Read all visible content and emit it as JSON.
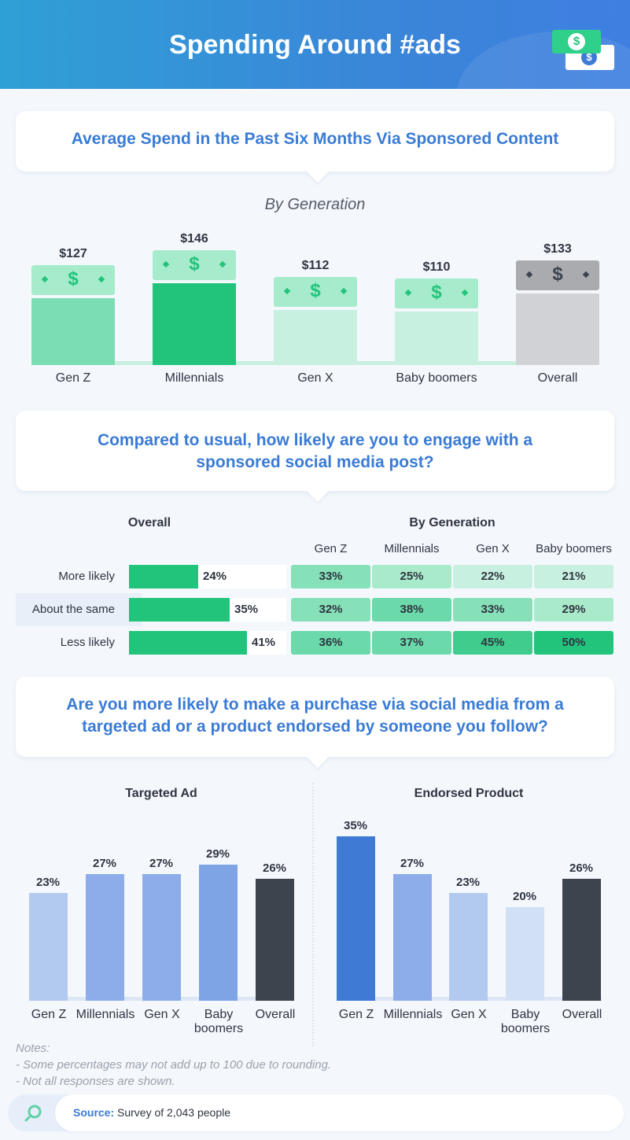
{
  "header": {
    "title": "Spending Around #ads"
  },
  "icons": {
    "money": "money-bills-icon",
    "search": "search-icon"
  },
  "colors": {
    "green_dark": "#22c47c",
    "green_mid": "#7bddb4",
    "green_light": "#c8f0e0",
    "gray": "#d0d2d6",
    "blue_dark": "#3f7bd4",
    "blue_mid": "#7ea4e6",
    "blue_light": "#b3caf0",
    "dark": "#3d444d"
  },
  "section1": {
    "card_title": "Average Spend in the Past Six Months Via Sponsored Content",
    "subtitle": "By Generation"
  },
  "section2": {
    "card_title_line1": "Compared to usual, how likely are you to engage with a",
    "card_title_line2": "sponsored social media post?",
    "overall_header": "Overall",
    "generation_header": "By Generation",
    "columns": [
      "Gen Z",
      "Millennials",
      "Gen X",
      "Baby boomers"
    ],
    "rows": [
      {
        "label": "More likely",
        "overall": "24%",
        "cells": [
          "33%",
          "25%",
          "22%",
          "21%"
        ]
      },
      {
        "label": "About the same",
        "overall": "35%",
        "cells": [
          "32%",
          "38%",
          "33%",
          "29%"
        ]
      },
      {
        "label": "Less likely",
        "overall": "41%",
        "cells": [
          "36%",
          "37%",
          "45%",
          "50%"
        ]
      }
    ]
  },
  "section3": {
    "card_title_line1": "Are you more likely to make a purchase via social media from a",
    "card_title_line2": "targeted ad or a product endorsed by someone you follow?"
  },
  "notes": {
    "title": "Notes:",
    "line1": "- Some percentages may not add up to 100 due to rounding.",
    "line2": "- Not all responses are shown."
  },
  "source": {
    "label": "Source:",
    "text": "Survey of 2,043 people"
  },
  "chart_data": [
    {
      "type": "bar",
      "title": "Average Spend in the Past Six Months Via Sponsored Content",
      "subtitle": "By Generation",
      "categories": [
        "Gen Z",
        "Millennials",
        "Gen X",
        "Baby boomers",
        "Overall"
      ],
      "values": [
        127,
        146,
        112,
        110,
        133
      ],
      "labels": [
        "$127",
        "$146",
        "$112",
        "$110",
        "$133"
      ],
      "ylabel": "USD",
      "ylim": [
        0,
        150
      ]
    },
    {
      "type": "table",
      "title": "Compared to usual, how likely are you to engage with a sponsored social media post?",
      "rows": [
        "More likely",
        "About the same",
        "Less likely"
      ],
      "columns": [
        "Overall",
        "Gen Z",
        "Millennials",
        "Gen X",
        "Baby boomers"
      ],
      "values": [
        [
          24,
          33,
          25,
          22,
          21
        ],
        [
          35,
          32,
          38,
          33,
          29
        ],
        [
          41,
          36,
          37,
          45,
          50
        ]
      ]
    },
    {
      "type": "bar",
      "title": "Targeted Ad",
      "categories": [
        "Gen Z",
        "Millennials",
        "Gen X",
        "Baby boomers",
        "Overall"
      ],
      "values": [
        23,
        27,
        27,
        29,
        26
      ],
      "labels": [
        "23%",
        "27%",
        "27%",
        "29%",
        "26%"
      ],
      "ylim": [
        0,
        35
      ]
    },
    {
      "type": "bar",
      "title": "Endorsed Product",
      "categories": [
        "Gen Z",
        "Millennials",
        "Gen X",
        "Baby boomers",
        "Overall"
      ],
      "values": [
        35,
        27,
        23,
        20,
        26
      ],
      "labels": [
        "35%",
        "27%",
        "23%",
        "20%",
        "26%"
      ],
      "ylim": [
        0,
        35
      ]
    }
  ]
}
